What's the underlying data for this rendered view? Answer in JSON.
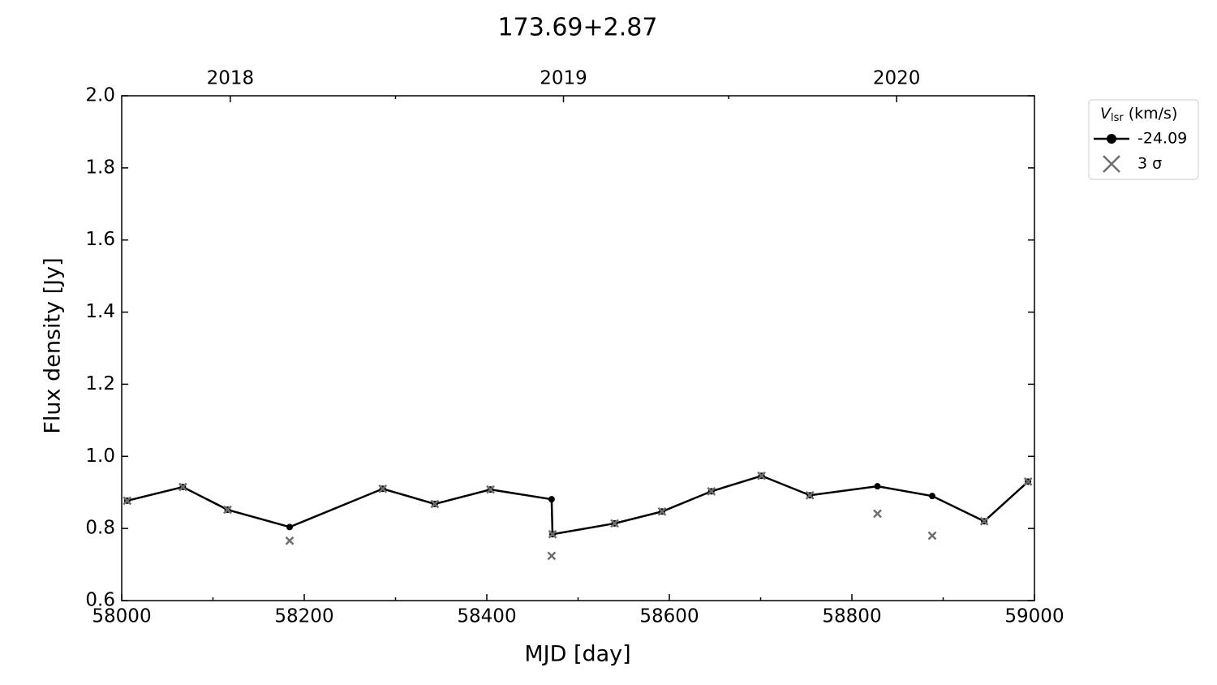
{
  "chart_data": {
    "type": "line",
    "title": "173.69+2.87",
    "xlabel": "MJD [day]",
    "ylabel": "Flux density [Jy]",
    "x": [
      58006,
      58067,
      58116,
      58184,
      58286,
      58343,
      58404,
      58471,
      58472,
      58540,
      58592,
      58646,
      58701,
      58754,
      58828,
      58888,
      58945,
      58993
    ],
    "series": [
      {
        "name": "-24.09",
        "color": "#000000",
        "marker": "circle",
        "values": [
          0.877,
          0.915,
          0.852,
          0.804,
          0.91,
          0.868,
          0.908,
          0.881,
          0.784,
          0.814,
          0.847,
          0.903,
          0.946,
          0.892,
          0.917,
          0.89,
          0.82,
          0.93
        ]
      },
      {
        "name": "3 σ",
        "color": "#6e6e6e",
        "marker": "x",
        "values": [
          0.877,
          0.915,
          0.852,
          0.766,
          0.91,
          0.868,
          0.908,
          0.724,
          0.784,
          0.814,
          0.847,
          0.903,
          0.946,
          0.892,
          0.841,
          0.78,
          0.82,
          0.93
        ]
      }
    ],
    "legend_title": {
      "symbol": "V",
      "subscript": "lsr",
      "unit": "(km/s)"
    },
    "legend": "outside-upper-right",
    "xlim": [
      58000,
      59000
    ],
    "xticks": [
      58000,
      58200,
      58400,
      58600,
      58800,
      59000
    ],
    "xminor_ticks": [
      58100,
      58300,
      58500,
      58700,
      58900
    ],
    "x2ticks": [
      {
        "value": 58119,
        "label": "2018"
      },
      {
        "value": 58484,
        "label": "2019"
      },
      {
        "value": 58849,
        "label": "2020"
      }
    ],
    "x2minor_ticks": [
      58300,
      58665
    ],
    "ylim": [
      0.6,
      2.0
    ],
    "yticks": [
      0.6,
      0.8,
      {
        "value": 1.0,
        "label": "1.0"
      },
      1.2,
      1.4,
      1.6,
      1.8,
      {
        "value": 2.0,
        "label": "2.0"
      }
    ],
    "grid": false
  }
}
